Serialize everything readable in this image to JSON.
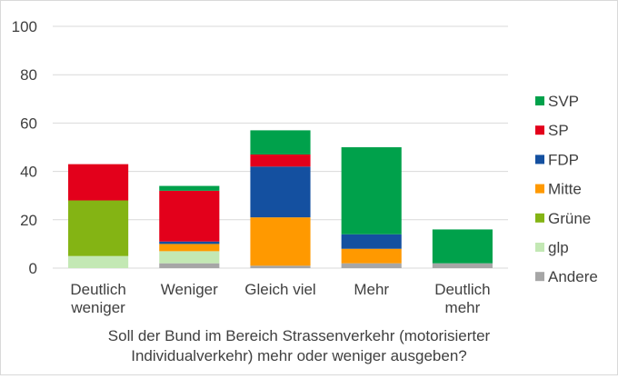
{
  "chart_data": {
    "type": "bar",
    "stacked": true,
    "title": "",
    "ylabel": "",
    "xlabel_lines": [
      "Soll der Bund im Bereich Strassenverkehr (motorisierter",
      "Individualverkehr) mehr oder weniger ausgeben?"
    ],
    "ylim": [
      0,
      100
    ],
    "yticks": [
      "0",
      "20",
      "40",
      "60",
      "80",
      "100"
    ],
    "grid": true,
    "legend_position": "right",
    "categories": [
      [
        "Deutlich",
        "weniger"
      ],
      [
        "Weniger"
      ],
      [
        "Gleich viel"
      ],
      [
        "Mehr"
      ],
      [
        "Deutlich",
        "mehr"
      ]
    ],
    "series": [
      {
        "name": "Andere",
        "color": "#a6a6a6",
        "values": [
          0,
          2,
          1,
          2,
          2
        ]
      },
      {
        "name": "glp",
        "color": "#c3e8b4",
        "values": [
          5,
          5,
          0,
          0,
          0
        ]
      },
      {
        "name": "Mitte",
        "color": "#ff9900",
        "values": [
          0,
          3,
          20,
          6,
          0
        ]
      },
      {
        "name": "FDP",
        "color": "#1450a0",
        "values": [
          0,
          1,
          21,
          6,
          0
        ]
      },
      {
        "name": "Grüne",
        "color": "#84b414",
        "values": [
          23,
          0,
          0,
          0,
          0
        ]
      },
      {
        "name": "SP",
        "color": "#e3001b",
        "values": [
          15,
          21,
          5,
          0,
          0
        ]
      },
      {
        "name": "SVP",
        "color": "#00a14b",
        "values": [
          0,
          2,
          10,
          36,
          14
        ]
      }
    ],
    "legend_order": [
      "SVP",
      "SP",
      "FDP",
      "Mitte",
      "Grüne",
      "glp",
      "Andere"
    ]
  }
}
